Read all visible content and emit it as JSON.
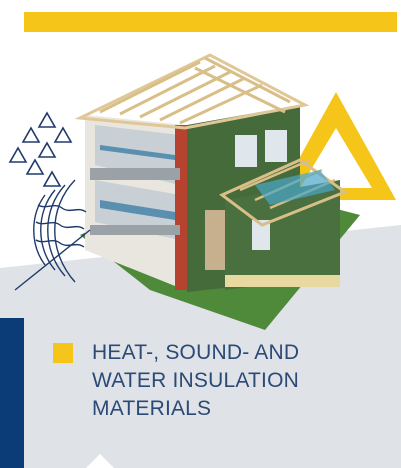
{
  "card": {
    "title_lines": [
      "HEAT-, SOUND- AND",
      "WATER INSULATION",
      "MATERIALS"
    ]
  },
  "colors": {
    "accent_yellow": "#f5c51a",
    "brand_blue": "#0c3c78",
    "panel_gray": "#dfe3e8",
    "text_blue": "#2b4a75"
  },
  "illustration": {
    "subject": "house-cutaway-insulation",
    "icons": [
      "triangle-cluster-icon",
      "sound-wave-icon",
      "yellow-triangle-icon"
    ]
  }
}
